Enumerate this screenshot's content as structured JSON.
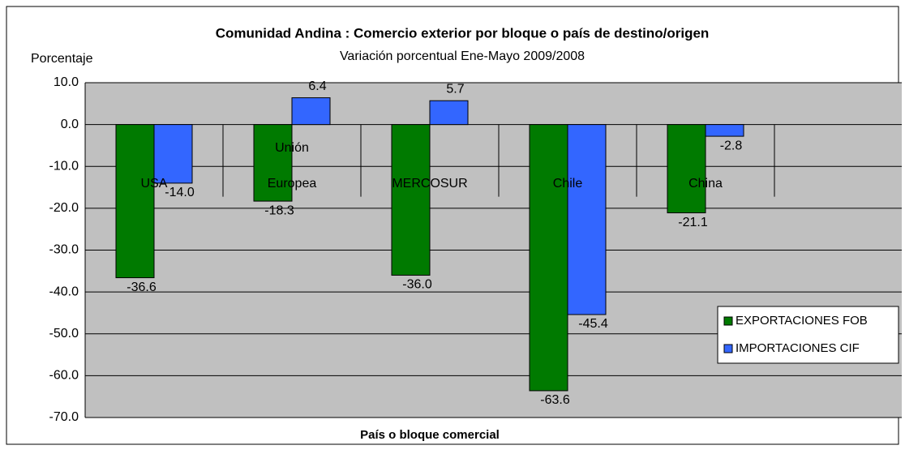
{
  "chart_data": {
    "type": "bar",
    "title": "Comunidad Andina : Comercio exterior por bloque o país de destino/origen",
    "subtitle": "Variación porcentual Ene-Mayo 2009/2008",
    "y_label": "Porcentaje",
    "x_label": "País o bloque comercial",
    "categories": [
      "USA",
      "Unión Europea",
      "MERCOSUR",
      "Chile",
      "China"
    ],
    "series": [
      {
        "name": "EXPORTACIONES FOB",
        "color": "#007a00",
        "values": [
          -36.6,
          -18.3,
          -36.0,
          -63.6,
          -21.1
        ]
      },
      {
        "name": "IMPORTACIONES CIF",
        "color": "#3366ff",
        "values": [
          -14.0,
          6.4,
          5.7,
          -45.4,
          -2.8
        ]
      }
    ],
    "ylim": [
      -70,
      10
    ],
    "yticks": [
      {
        "value": 10,
        "label": "10.0"
      },
      {
        "value": 0,
        "label": "0.0"
      },
      {
        "value": -10,
        "label": "-10.0"
      },
      {
        "value": -20,
        "label": "-20.0"
      },
      {
        "value": -30,
        "label": "-30.0"
      },
      {
        "value": -40,
        "label": "-40.0"
      },
      {
        "value": -50,
        "label": "-50.0"
      },
      {
        "value": -60,
        "label": "-60.0"
      },
      {
        "value": -70,
        "label": "-70.0"
      }
    ],
    "value_labels": [
      [
        "-36.6",
        "-18.3",
        "-36.0",
        "-63.6",
        "-21.1"
      ],
      [
        "-14.0",
        "6.4",
        "5.7",
        "-45.4",
        "-2.8"
      ]
    ],
    "grid": true,
    "legend": "right"
  }
}
